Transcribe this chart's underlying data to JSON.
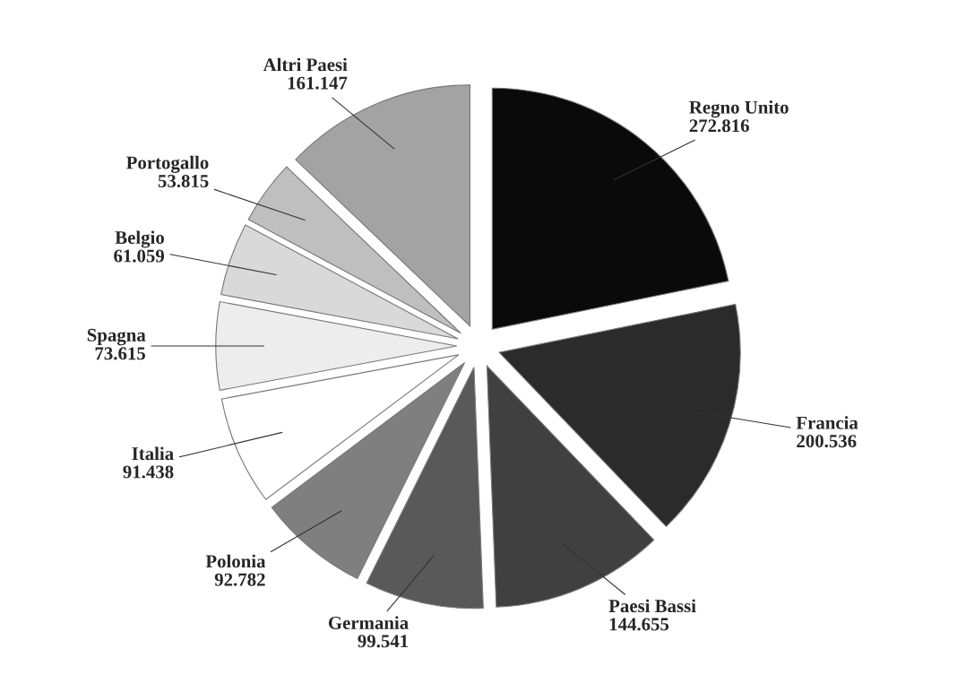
{
  "chart_data": {
    "type": "pie",
    "categories": [
      "Regno Unito",
      "Francia",
      "Paesi Bassi",
      "Germania",
      "Polonia",
      "Italia",
      "Spagna",
      "Belgio",
      "Portogallo",
      "Altri Paesi"
    ],
    "values": [
      272816,
      200536,
      144655,
      99541,
      92782,
      91438,
      73615,
      61059,
      53815,
      161147
    ],
    "value_labels": [
      "272.816",
      "200.536",
      "144.655",
      "99.541",
      "92.782",
      "91.438",
      "73.615",
      "61.059",
      "53.815",
      "161.147"
    ],
    "colors": [
      "#0a0a0a",
      "#2b2b2b",
      "#404040",
      "#595959",
      "#7f7f7f",
      "#ffffff",
      "#ededed",
      "#d9d9d9",
      "#bfbfbf",
      "#a3a3a3"
    ],
    "legend": false
  }
}
